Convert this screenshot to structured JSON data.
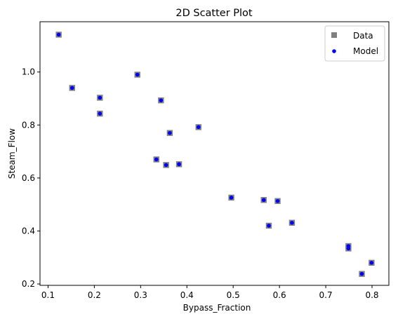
{
  "chart_data": {
    "type": "scatter",
    "title": "2D Scatter Plot",
    "xlabel": "Bypass_Fraction",
    "ylabel": "Steam_Flow",
    "xlim": [
      0.0826,
      0.8364
    ],
    "ylim": [
      0.1948,
      1.1898
    ],
    "xticks": [
      0.1,
      0.2,
      0.3,
      0.4,
      0.5,
      0.6,
      0.7,
      0.8
    ],
    "xtick_labels": [
      "0.1",
      "0.2",
      "0.3",
      "0.4",
      "0.5",
      "0.6",
      "0.7",
      "0.8"
    ],
    "yticks": [
      0.2,
      0.4,
      0.6,
      0.8,
      1.0
    ],
    "ytick_labels": [
      "0.2",
      "0.4",
      "0.6",
      "0.8",
      "1.0"
    ],
    "grid": false,
    "legend_position": "top-right",
    "series": [
      {
        "name": "Data",
        "marker": "square",
        "color": "#808080",
        "x": [
          0.123,
          0.152,
          0.212,
          0.212,
          0.293,
          0.344,
          0.363,
          0.425,
          0.334,
          0.355,
          0.383,
          0.496,
          0.566,
          0.596,
          0.577,
          0.627,
          0.749,
          0.749,
          0.778,
          0.799
        ],
        "y": [
          1.141,
          0.94,
          0.903,
          0.843,
          0.99,
          0.893,
          0.77,
          0.792,
          0.67,
          0.649,
          0.652,
          0.526,
          0.517,
          0.513,
          0.42,
          0.431,
          0.343,
          0.334,
          0.238,
          0.28
        ]
      },
      {
        "name": "Model",
        "marker": "circle",
        "color": "#0000ff",
        "x": [
          0.123,
          0.152,
          0.212,
          0.212,
          0.293,
          0.344,
          0.363,
          0.425,
          0.334,
          0.355,
          0.383,
          0.496,
          0.566,
          0.596,
          0.577,
          0.627,
          0.749,
          0.749,
          0.778,
          0.799
        ],
        "y": [
          1.141,
          0.94,
          0.903,
          0.843,
          0.99,
          0.893,
          0.77,
          0.792,
          0.67,
          0.649,
          0.652,
          0.526,
          0.517,
          0.513,
          0.42,
          0.431,
          0.343,
          0.334,
          0.238,
          0.28
        ]
      }
    ]
  }
}
